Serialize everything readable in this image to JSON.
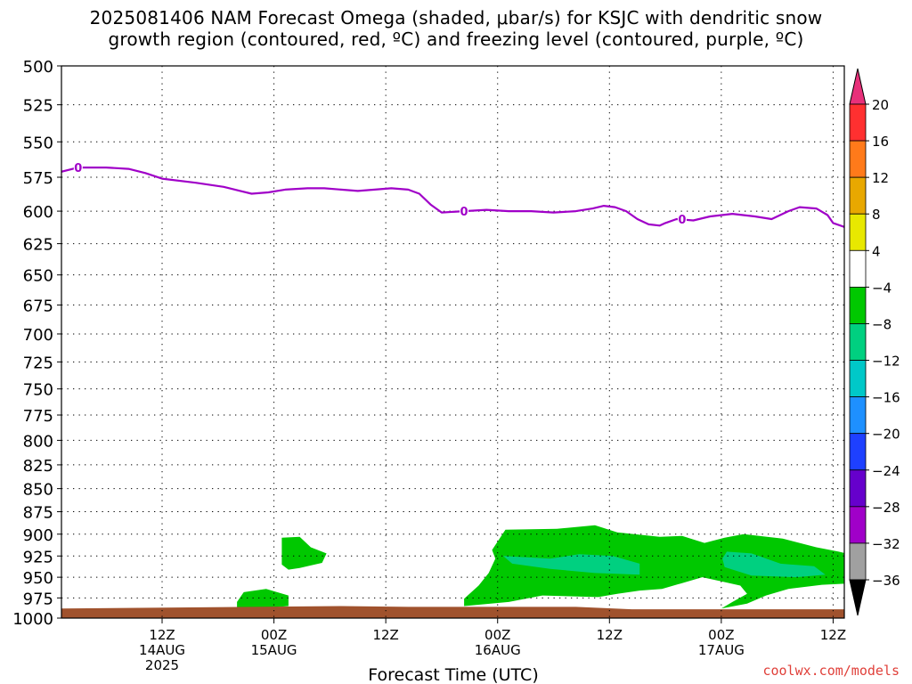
{
  "title": {
    "line1": "2025081406 NAM Forecast Omega (shaded, μbar/s) for KSJC with dendritic snow",
    "line2": "growth region (contoured, red, ºC) and freezing level (contoured, purple, ºC)"
  },
  "credit": "coolwx.com/models",
  "chart_data": {
    "type": "heatmap",
    "xlabel": "Forecast Time (UTC)",
    "ylabel": "",
    "x_range_hours": [
      -3,
      67
    ],
    "y_range_hpa": [
      500,
      1000
    ],
    "y_scale": "log-pressure",
    "grid": true,
    "y_ticks": [
      500,
      525,
      550,
      575,
      600,
      625,
      650,
      675,
      700,
      725,
      750,
      775,
      800,
      825,
      850,
      875,
      900,
      925,
      950,
      975,
      1000
    ],
    "x_ticks": [
      {
        "h": 6,
        "lines": [
          "12Z",
          "14AUG",
          "2025"
        ]
      },
      {
        "h": 16,
        "lines": [
          "00Z",
          "15AUG"
        ]
      },
      {
        "h": 26,
        "lines": [
          "12Z"
        ]
      },
      {
        "h": 36,
        "lines": [
          "00Z",
          "16AUG"
        ]
      },
      {
        "h": 46,
        "lines": [
          "12Z"
        ]
      },
      {
        "h": 56,
        "lines": [
          "00Z",
          "17AUG"
        ]
      },
      {
        "h": 66,
        "lines": [
          "12Z"
        ]
      }
    ],
    "freezing_level": {
      "color": "#a000c8",
      "label": "0",
      "points": [
        [
          -3,
          571
        ],
        [
          -1.5,
          568
        ],
        [
          1,
          568
        ],
        [
          3,
          569
        ],
        [
          4.5,
          572
        ],
        [
          6,
          576
        ],
        [
          9,
          579
        ],
        [
          11.5,
          582
        ],
        [
          13,
          585
        ],
        [
          14,
          587
        ],
        [
          15.5,
          586
        ],
        [
          17,
          584
        ],
        [
          19,
          583
        ],
        [
          20.5,
          583
        ],
        [
          22,
          584
        ],
        [
          23.5,
          585
        ],
        [
          25,
          584
        ],
        [
          26.5,
          583
        ],
        [
          28,
          584
        ],
        [
          29,
          587
        ],
        [
          30,
          595
        ],
        [
          31,
          601
        ],
        [
          33,
          600
        ],
        [
          35,
          599
        ],
        [
          37,
          600
        ],
        [
          39,
          600
        ],
        [
          41,
          601
        ],
        [
          43,
          600
        ],
        [
          44.5,
          598
        ],
        [
          45.5,
          596
        ],
        [
          46.5,
          597
        ],
        [
          47.5,
          600
        ],
        [
          48.5,
          606
        ],
        [
          49.5,
          610
        ],
        [
          50.5,
          611
        ],
        [
          51,
          609
        ],
        [
          52,
          606
        ],
        [
          53.5,
          607
        ],
        [
          55,
          604
        ],
        [
          57,
          602
        ],
        [
          59,
          604
        ],
        [
          60.5,
          606
        ],
        [
          62,
          600
        ],
        [
          63,
          597
        ],
        [
          64.5,
          598
        ],
        [
          65.5,
          603
        ],
        [
          66,
          609
        ],
        [
          67,
          612
        ],
        [
          68,
          613
        ],
        [
          69,
          612
        ],
        [
          70,
          609
        ]
      ],
      "contour_labels": [
        [
          -1.5,
          568
        ],
        [
          33,
          600
        ],
        [
          52.5,
          606
        ]
      ]
    },
    "omega_regions": [
      {
        "value_range": [
          -8,
          -4
        ],
        "color": "#00c800",
        "points": [
          [
            16.7,
            904
          ],
          [
            18.3,
            903
          ],
          [
            19.3,
            915
          ],
          [
            20.7,
            922
          ],
          [
            20.3,
            933
          ],
          [
            18.3,
            939
          ],
          [
            17.3,
            941
          ],
          [
            16.7,
            935
          ]
        ]
      },
      {
        "value_range": [
          -8,
          -4
        ],
        "color": "#00c800",
        "points": [
          [
            13.3,
            968
          ],
          [
            15.3,
            964
          ],
          [
            17.3,
            972
          ],
          [
            17.3,
            985
          ],
          [
            12.7,
            990
          ],
          [
            12.7,
            980
          ]
        ]
      },
      {
        "value_range": [
          -8,
          -4
        ],
        "color": "#00c800",
        "points": [
          [
            36.7,
            895
          ],
          [
            41.3,
            894
          ],
          [
            44.7,
            890
          ],
          [
            46.7,
            898
          ],
          [
            50.5,
            903
          ],
          [
            52.5,
            902
          ],
          [
            54.5,
            910
          ],
          [
            56.3,
            904
          ],
          [
            58,
            900
          ],
          [
            61.5,
            905
          ],
          [
            64.5,
            915
          ],
          [
            66.5,
            920
          ],
          [
            68.5,
            926
          ],
          [
            70,
            937
          ],
          [
            69.5,
            952
          ],
          [
            68,
            957
          ],
          [
            65,
            959
          ],
          [
            62,
            964
          ],
          [
            60,
            972
          ],
          [
            58.3,
            982
          ],
          [
            56,
            988
          ],
          [
            57,
            980
          ],
          [
            58.3,
            970
          ],
          [
            57.7,
            960
          ],
          [
            56,
            955
          ],
          [
            54.3,
            950
          ],
          [
            52.5,
            957
          ],
          [
            50.7,
            964
          ],
          [
            48.7,
            966
          ],
          [
            46.7,
            970
          ],
          [
            45,
            974
          ],
          [
            40,
            972
          ],
          [
            37,
            980
          ],
          [
            33,
            985
          ],
          [
            33,
            976
          ],
          [
            34.3,
            960
          ],
          [
            35.2,
            945
          ],
          [
            35.8,
            928
          ],
          [
            35.5,
            918
          ]
        ]
      },
      {
        "value_range": [
          -12,
          -8
        ],
        "color": "#00d080",
        "points": [
          [
            36.5,
            925
          ],
          [
            40.7,
            928
          ],
          [
            43.3,
            923
          ],
          [
            46.3,
            925
          ],
          [
            48.7,
            934
          ],
          [
            48.7,
            947
          ],
          [
            44.7,
            945
          ],
          [
            40.7,
            940
          ],
          [
            37.3,
            934
          ]
        ]
      },
      {
        "value_range": [
          -12,
          -8
        ],
        "color": "#00d080",
        "points": [
          [
            56.5,
            920
          ],
          [
            58.7,
            922
          ],
          [
            61.3,
            934
          ],
          [
            64.3,
            937
          ],
          [
            65.3,
            947
          ],
          [
            62.7,
            950
          ],
          [
            58.7,
            948
          ],
          [
            56.3,
            938
          ],
          [
            56.1,
            928
          ]
        ]
      }
    ],
    "surface": {
      "color": "#a0522d",
      "points": [
        [
          -3,
          988
        ],
        [
          22,
          985
        ],
        [
          28,
          986
        ],
        [
          36,
          986
        ],
        [
          43,
          986
        ],
        [
          48,
          989
        ],
        [
          58,
          989
        ],
        [
          67,
          989
        ],
        [
          70,
          992
        ]
      ]
    },
    "colorbar": {
      "labels": [
        "20",
        "16",
        "12",
        "8",
        "4",
        "−4",
        "−8",
        "−12",
        "−16",
        "−20",
        "−24",
        "−28",
        "−32",
        "−36"
      ],
      "colors": [
        "#e8307a",
        "#ff3030",
        "#ff7a1a",
        "#e8a800",
        "#e8e800",
        "#ffffff",
        "#00c800",
        "#00d080",
        "#00c8c8",
        "#1e90ff",
        "#1e40ff",
        "#6600cc",
        "#a000c8",
        "#a0a0a0",
        "#000000"
      ]
    }
  }
}
